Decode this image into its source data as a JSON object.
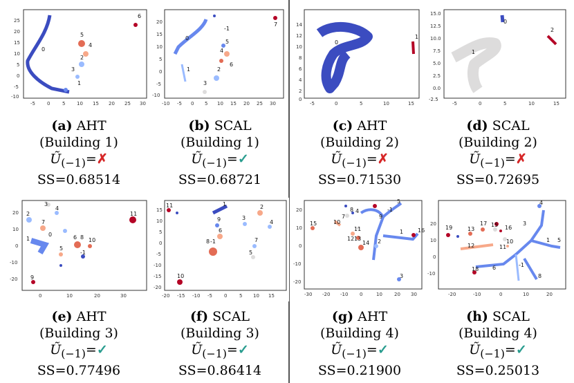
{
  "panels": [
    {
      "id": "a",
      "letter": "(a)",
      "method": "AHT",
      "building": "(Building 1)",
      "result_symbol": "✗",
      "result_label": "not recovered",
      "ss": "SS=0.68514",
      "cluster_labels": [
        "0",
        "1",
        "2",
        "3",
        "4",
        "5",
        "6"
      ],
      "xticks": [
        "-5",
        "0",
        "5",
        "10",
        "15",
        "20",
        "25",
        "30"
      ],
      "yticks": [
        "25",
        "20",
        "15",
        "10",
        "5",
        "0",
        "-5",
        "-10"
      ]
    },
    {
      "id": "b",
      "letter": "(b)",
      "method": "SCAL",
      "building": "(Building 1)",
      "result_symbol": "✓",
      "result_label": "recovered",
      "ss": "SS=0.68721",
      "cluster_labels": [
        "0",
        "1",
        "2",
        "3",
        "4",
        "5",
        "6",
        "7",
        "-1"
      ],
      "xticks": [
        "-10",
        "-5",
        "0",
        "5",
        "10",
        "15",
        "20",
        "25",
        "30"
      ],
      "yticks": [
        "20",
        "15",
        "10",
        "5",
        "0",
        "-5",
        "-10"
      ]
    },
    {
      "id": "c",
      "letter": "(c)",
      "method": "AHT",
      "building": "(Building 2)",
      "result_symbol": "✗",
      "result_label": "not recovered",
      "ss": "SS=0.71530",
      "cluster_labels": [
        "0",
        "1"
      ],
      "xticks": [
        "-5",
        "0",
        "5",
        "10",
        "15"
      ],
      "yticks": [
        "14",
        "12",
        "10",
        "8",
        "6",
        "4",
        "2",
        "0"
      ]
    },
    {
      "id": "d",
      "letter": "(d)",
      "method": "SCAL",
      "building": "(Building 2)",
      "result_symbol": "✗",
      "result_label": "not recovered",
      "ss": "SS=0.72695",
      "cluster_labels": [
        "0",
        "1",
        "2"
      ],
      "xticks": [
        "-5",
        "0",
        "5",
        "10",
        "15"
      ],
      "yticks": [
        "15.0",
        "12.5",
        "10.0",
        "7.5",
        "5.0",
        "2.5",
        "0.0",
        "-2.5"
      ]
    },
    {
      "id": "e",
      "letter": "(e)",
      "method": "AHT",
      "building": "(Building 3)",
      "result_symbol": "✓",
      "result_label": "recovered",
      "ss": "SS=0.77496",
      "cluster_labels": [
        "0",
        "1",
        "2",
        "3",
        "4",
        "5",
        "6",
        "7",
        "8",
        "9",
        "10",
        "11",
        "-1"
      ],
      "xticks": [
        "0",
        "10",
        "20",
        "30"
      ],
      "yticks": [
        "20",
        "10",
        "0",
        "-10",
        "-20"
      ]
    },
    {
      "id": "f",
      "letter": "(f)",
      "method": "SCAL",
      "building": "(Building 3)",
      "result_symbol": "✓",
      "result_label": "recovered",
      "ss": "SS=0.86414",
      "cluster_labels": [
        "1",
        "2",
        "3",
        "4",
        "5",
        "6",
        "7",
        "8",
        "9",
        "10",
        "11",
        "-1"
      ],
      "xticks": [
        "-20",
        "-15",
        "-10",
        "-5",
        "0",
        "5",
        "10",
        "15"
      ],
      "yticks": [
        "15",
        "10",
        "5",
        "0",
        "-5",
        "-10",
        "-15",
        "-20"
      ]
    },
    {
      "id": "g",
      "letter": "(g)",
      "method": "AHT",
      "building": "(Building 4)",
      "result_symbol": "✓",
      "result_label": "recovered",
      "ss": "SS=0.21900",
      "cluster_labels": [
        "1",
        "2",
        "3",
        "4",
        "5",
        "7",
        "8",
        "9",
        "10",
        "11",
        "12",
        "13",
        "14",
        "15",
        "16",
        "-1"
      ],
      "xticks": [
        "-30",
        "-20",
        "-10",
        "0",
        "10",
        "20",
        "30"
      ],
      "yticks": [
        "20",
        "10",
        "0",
        "-10",
        "-20"
      ]
    },
    {
      "id": "h",
      "letter": "(h)",
      "method": "SCAL",
      "building": "(Building 4)",
      "result_symbol": "✓",
      "result_label": "recovered",
      "ss": "SS=0.25013",
      "cluster_labels": [
        "1",
        "3",
        "4",
        "5",
        "6",
        "8",
        "10",
        "11",
        "12",
        "13",
        "15",
        "16",
        "17",
        "18",
        "19",
        "-1"
      ],
      "xticks": [
        "-20",
        "-10",
        "0",
        "10",
        "20"
      ],
      "yticks": [
        "20",
        "10",
        "0",
        "-10"
      ]
    }
  ],
  "u_notation": "Ũ",
  "u_subscript": "(−1)",
  "equals": "=",
  "colors": {
    "dark_blue": "#3b4cc0",
    "mid_blue": "#6788ee",
    "light_blue": "#9abbff",
    "grey": "#dddcdc",
    "salmon": "#f7a889",
    "orange": "#e36c55",
    "dark_red": "#b40426",
    "check": "#2a9d8f",
    "cross": "#d62728"
  }
}
